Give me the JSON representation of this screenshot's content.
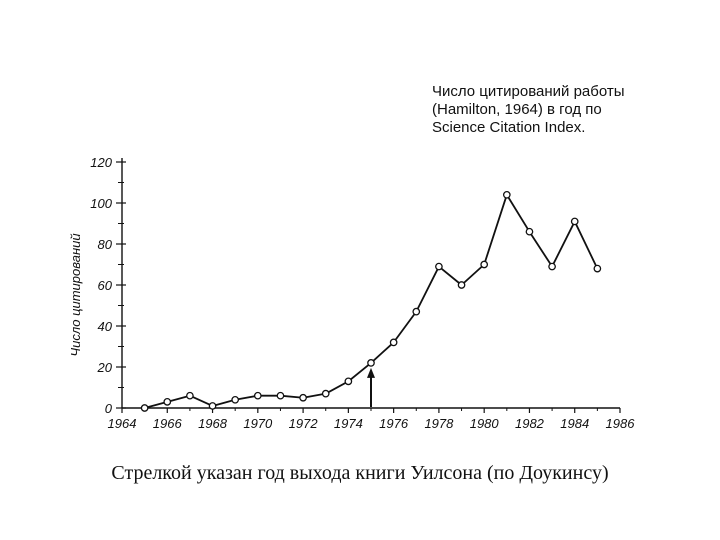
{
  "chart_data": {
    "type": "line",
    "title_lines": [
      "Число цитирований работы",
      "(Hamilton, 1964) в год по",
      "Science Citation Index."
    ],
    "ylabel": "Число цитирований",
    "xlabel": "",
    "x_ticks": [
      "1964",
      "1966",
      "1968",
      "1970",
      "1972",
      "1974",
      "1976",
      "1978",
      "1980",
      "1982",
      "1984",
      "1986"
    ],
    "y_ticks": [
      "0",
      "20",
      "40",
      "60",
      "80",
      "100",
      "120"
    ],
    "xlim": [
      1964,
      1986
    ],
    "ylim": [
      0,
      120
    ],
    "grid": false,
    "series": [
      {
        "x": [
          1965,
          1966,
          1967,
          1968,
          1969,
          1970,
          1971,
          1972,
          1973,
          1974,
          1975,
          1976,
          1977,
          1978,
          1979,
          1980,
          1981,
          1982,
          1983,
          1984,
          1985
        ],
        "values": [
          0,
          3,
          6,
          1,
          4,
          6,
          6,
          5,
          7,
          13,
          22,
          32,
          47,
          69,
          60,
          70,
          104,
          86,
          69,
          91,
          68
        ]
      }
    ],
    "annotations": [
      {
        "type": "arrow",
        "x": 1975,
        "label": ""
      }
    ]
  },
  "caption": "Стрелкой указан год выхода книги Уилсона (по Доукинсу)"
}
